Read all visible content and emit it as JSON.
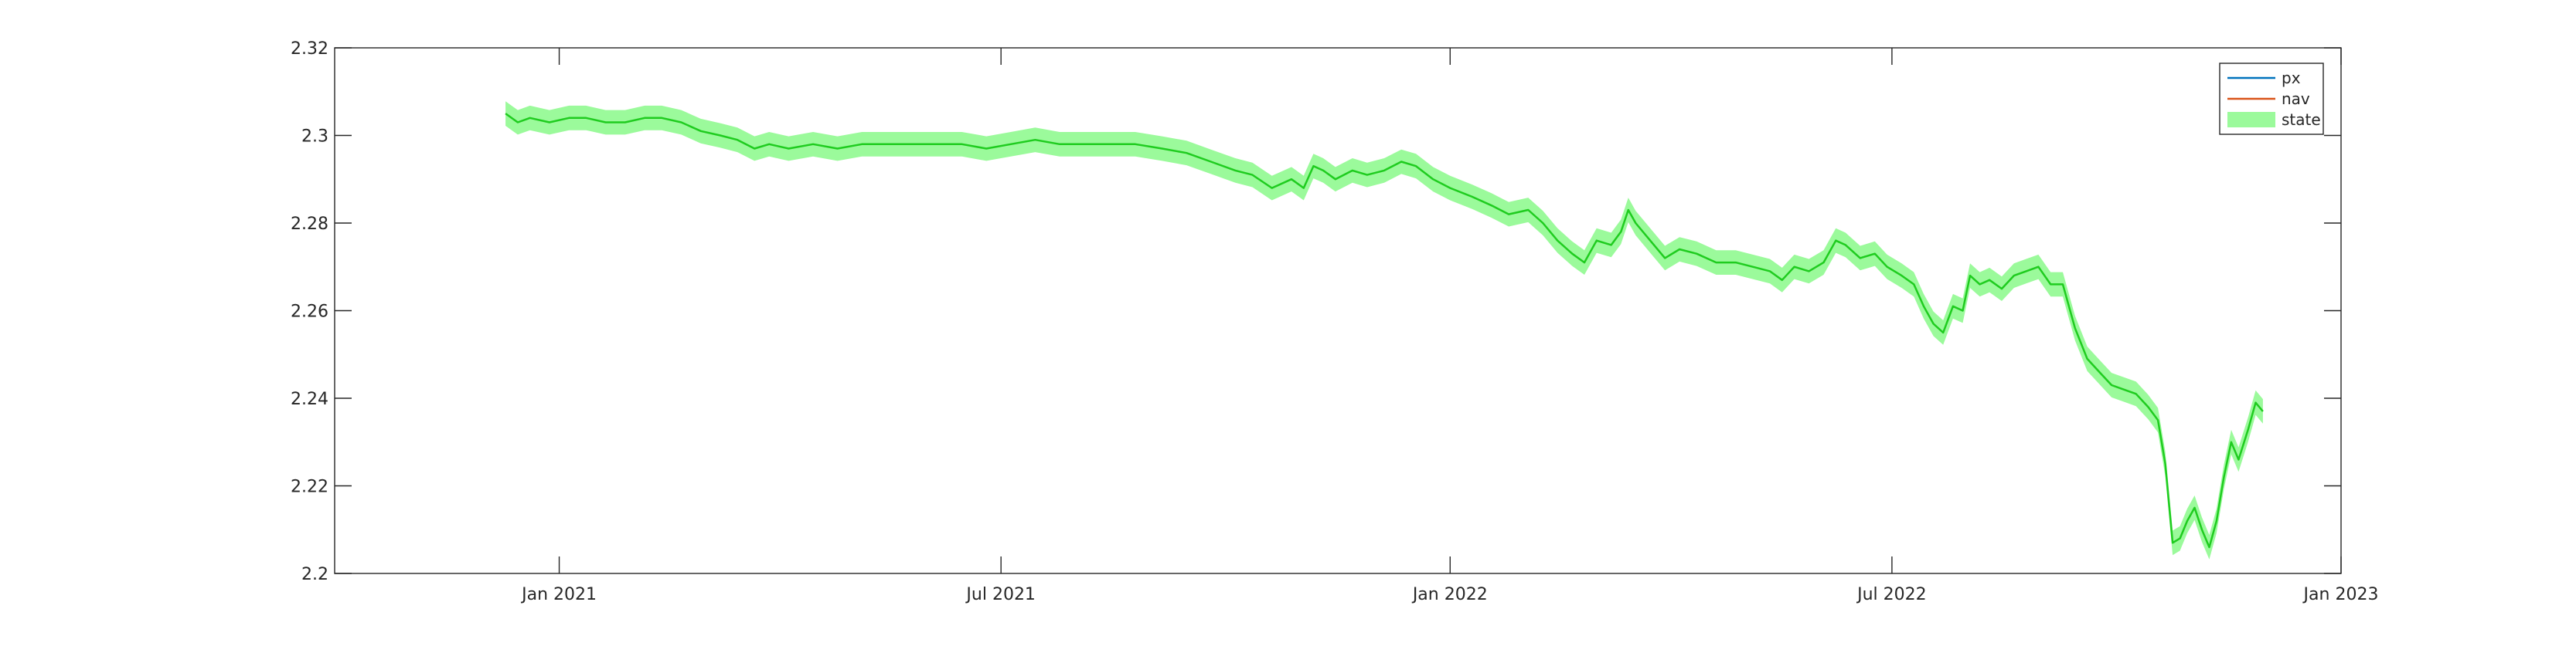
{
  "chart_data": {
    "type": "line",
    "title": "",
    "xlabel": "",
    "ylabel": "",
    "xlim": [
      "2020-10-01",
      "2023-01-01"
    ],
    "ylim": [
      2.2,
      2.32
    ],
    "x_ticks": [
      {
        "date": "2021-01-01",
        "label": "Jan 2021"
      },
      {
        "date": "2021-07-01",
        "label": "Jul 2021"
      },
      {
        "date": "2022-01-01",
        "label": "Jan 2022"
      },
      {
        "date": "2022-07-01",
        "label": "Jul 2022"
      },
      {
        "date": "2023-01-01",
        "label": "Jan 2023"
      }
    ],
    "y_ticks": [
      {
        "value": 2.2,
        "label": "2.2"
      },
      {
        "value": 2.22,
        "label": "2.22"
      },
      {
        "value": 2.24,
        "label": "2.24"
      },
      {
        "value": 2.26,
        "label": "2.26"
      },
      {
        "value": 2.28,
        "label": "2.28"
      },
      {
        "value": 2.3,
        "label": "2.3"
      },
      {
        "value": 2.32,
        "label": "2.32"
      }
    ],
    "grid": false,
    "legend_position": "top-right",
    "band_halfwidth": 0.0028,
    "series": [
      {
        "name": "px",
        "kind": "line",
        "color": "#0072BD",
        "values": []
      },
      {
        "name": "nav",
        "kind": "line",
        "color": "#D95319",
        "values": []
      },
      {
        "name": "state",
        "kind": "band",
        "color": "#1FCC1F",
        "fill": "#9BFA9B",
        "points": [
          [
            "2020-12-10",
            2.305
          ],
          [
            "2020-12-15",
            2.303
          ],
          [
            "2020-12-20",
            2.304
          ],
          [
            "2020-12-28",
            2.303
          ],
          [
            "2021-01-05",
            2.304
          ],
          [
            "2021-01-12",
            2.304
          ],
          [
            "2021-01-20",
            2.303
          ],
          [
            "2021-01-28",
            2.303
          ],
          [
            "2021-02-05",
            2.304
          ],
          [
            "2021-02-12",
            2.304
          ],
          [
            "2021-02-20",
            2.303
          ],
          [
            "2021-02-28",
            2.301
          ],
          [
            "2021-03-08",
            2.3
          ],
          [
            "2021-03-15",
            2.299
          ],
          [
            "2021-03-22",
            2.297
          ],
          [
            "2021-03-28",
            2.298
          ],
          [
            "2021-04-05",
            2.297
          ],
          [
            "2021-04-15",
            2.298
          ],
          [
            "2021-04-25",
            2.297
          ],
          [
            "2021-05-05",
            2.298
          ],
          [
            "2021-05-20",
            2.298
          ],
          [
            "2021-06-01",
            2.298
          ],
          [
            "2021-06-15",
            2.298
          ],
          [
            "2021-06-25",
            2.297
          ],
          [
            "2021-07-05",
            2.298
          ],
          [
            "2021-07-15",
            2.299
          ],
          [
            "2021-07-25",
            2.298
          ],
          [
            "2021-08-05",
            2.298
          ],
          [
            "2021-08-15",
            2.298
          ],
          [
            "2021-08-25",
            2.298
          ],
          [
            "2021-09-05",
            2.297
          ],
          [
            "2021-09-15",
            2.296
          ],
          [
            "2021-09-25",
            2.294
          ],
          [
            "2021-10-05",
            2.292
          ],
          [
            "2021-10-12",
            2.291
          ],
          [
            "2021-10-20",
            2.288
          ],
          [
            "2021-10-28",
            2.29
          ],
          [
            "2021-11-02",
            2.288
          ],
          [
            "2021-11-06",
            2.293
          ],
          [
            "2021-11-10",
            2.292
          ],
          [
            "2021-11-15",
            2.29
          ],
          [
            "2021-11-22",
            2.292
          ],
          [
            "2021-11-28",
            2.291
          ],
          [
            "2021-12-05",
            2.292
          ],
          [
            "2021-12-12",
            2.294
          ],
          [
            "2021-12-18",
            2.293
          ],
          [
            "2021-12-25",
            2.29
          ],
          [
            "2022-01-01",
            2.288
          ],
          [
            "2022-01-10",
            2.286
          ],
          [
            "2022-01-18",
            2.284
          ],
          [
            "2022-01-25",
            2.282
          ],
          [
            "2022-02-02",
            2.283
          ],
          [
            "2022-02-08",
            2.28
          ],
          [
            "2022-02-14",
            2.276
          ],
          [
            "2022-02-20",
            2.273
          ],
          [
            "2022-02-25",
            2.271
          ],
          [
            "2022-03-02",
            2.276
          ],
          [
            "2022-03-08",
            2.275
          ],
          [
            "2022-03-12",
            2.278
          ],
          [
            "2022-03-15",
            2.283
          ],
          [
            "2022-03-18",
            2.28
          ],
          [
            "2022-03-24",
            2.276
          ],
          [
            "2022-03-30",
            2.272
          ],
          [
            "2022-04-05",
            2.274
          ],
          [
            "2022-04-12",
            2.273
          ],
          [
            "2022-04-20",
            2.271
          ],
          [
            "2022-04-28",
            2.271
          ],
          [
            "2022-05-05",
            2.27
          ],
          [
            "2022-05-12",
            2.269
          ],
          [
            "2022-05-17",
            2.267
          ],
          [
            "2022-05-22",
            2.27
          ],
          [
            "2022-05-28",
            2.269
          ],
          [
            "2022-06-03",
            2.271
          ],
          [
            "2022-06-08",
            2.276
          ],
          [
            "2022-06-12",
            2.275
          ],
          [
            "2022-06-18",
            2.272
          ],
          [
            "2022-06-24",
            2.273
          ],
          [
            "2022-06-29",
            2.27
          ],
          [
            "2022-07-05",
            2.268
          ],
          [
            "2022-07-10",
            2.266
          ],
          [
            "2022-07-14",
            2.261
          ],
          [
            "2022-07-18",
            2.257
          ],
          [
            "2022-07-22",
            2.255
          ],
          [
            "2022-07-26",
            2.261
          ],
          [
            "2022-07-30",
            2.26
          ],
          [
            "2022-08-02",
            2.268
          ],
          [
            "2022-08-06",
            2.266
          ],
          [
            "2022-08-10",
            2.267
          ],
          [
            "2022-08-15",
            2.265
          ],
          [
            "2022-08-20",
            2.268
          ],
          [
            "2022-08-25",
            2.269
          ],
          [
            "2022-08-30",
            2.27
          ],
          [
            "2022-09-04",
            2.266
          ],
          [
            "2022-09-09",
            2.266
          ],
          [
            "2022-09-14",
            2.256
          ],
          [
            "2022-09-19",
            2.249
          ],
          [
            "2022-09-24",
            2.246
          ],
          [
            "2022-09-29",
            2.243
          ],
          [
            "2022-10-04",
            2.242
          ],
          [
            "2022-10-09",
            2.241
          ],
          [
            "2022-10-14",
            2.238
          ],
          [
            "2022-10-18",
            2.235
          ],
          [
            "2022-10-21",
            2.225
          ],
          [
            "2022-10-24",
            2.207
          ],
          [
            "2022-10-27",
            2.208
          ],
          [
            "2022-10-30",
            2.212
          ],
          [
            "2022-11-02",
            2.215
          ],
          [
            "2022-11-05",
            2.21
          ],
          [
            "2022-11-08",
            2.206
          ],
          [
            "2022-11-11",
            2.212
          ],
          [
            "2022-11-14",
            2.222
          ],
          [
            "2022-11-17",
            2.23
          ],
          [
            "2022-11-20",
            2.226
          ],
          [
            "2022-11-24",
            2.233
          ],
          [
            "2022-11-27",
            2.239
          ],
          [
            "2022-11-30",
            2.237
          ]
        ]
      }
    ]
  }
}
